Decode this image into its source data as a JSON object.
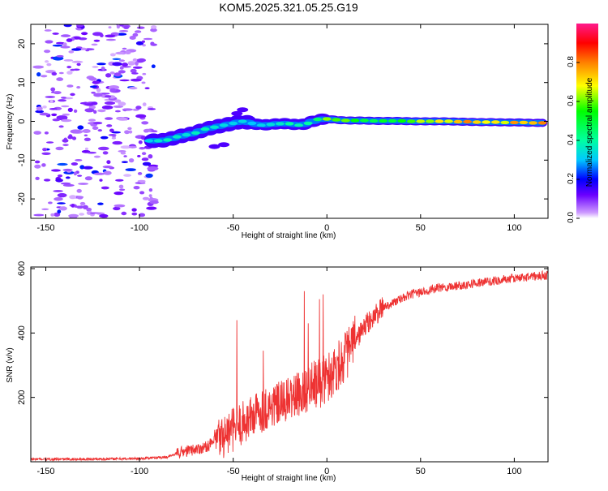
{
  "figure": {
    "title": "KOM5.2025.321.05.25.G19"
  },
  "chart_data": [
    {
      "type": "heatmap",
      "xlabel": "Height of straight line (km)",
      "ylabel": "Frequency (Hz)",
      "xlim": [
        -158,
        118
      ],
      "ylim": [
        -25,
        25
      ],
      "xticks": [
        -150,
        -100,
        -50,
        0,
        50,
        100
      ],
      "yticks": [
        -20,
        -10,
        0,
        10,
        20
      ],
      "colorbar": {
        "label": "Normalized spectral amplitude",
        "range": [
          0,
          1
        ],
        "ticks": [
          0.0,
          0.2,
          0.4,
          0.6,
          0.8
        ],
        "tick_labels": [
          "0.0",
          "0.2",
          "0.4",
          "0.6",
          "0.8"
        ]
      },
      "signal_track": [
        {
          "x": -95,
          "y": -5.0,
          "amp": 0.32
        },
        {
          "x": -90,
          "y": -5.0,
          "amp": 0.35
        },
        {
          "x": -85,
          "y": -4.8,
          "amp": 0.38
        },
        {
          "x": -80,
          "y": -4.0,
          "amp": 0.36
        },
        {
          "x": -75,
          "y": -3.5,
          "amp": 0.34
        },
        {
          "x": -70,
          "y": -3.0,
          "amp": 0.37
        },
        {
          "x": -65,
          "y": -2.0,
          "amp": 0.38
        },
        {
          "x": -60,
          "y": -1.5,
          "amp": 0.35
        },
        {
          "x": -55,
          "y": -1.0,
          "amp": 0.33
        },
        {
          "x": -50,
          "y": -0.5,
          "amp": 0.32
        },
        {
          "x": -45,
          "y": 0.0,
          "amp": 0.33
        },
        {
          "x": -40,
          "y": -0.5,
          "amp": 0.3
        },
        {
          "x": -35,
          "y": -1.0,
          "amp": 0.32
        },
        {
          "x": -30,
          "y": -0.8,
          "amp": 0.34
        },
        {
          "x": -25,
          "y": -0.6,
          "amp": 0.36
        },
        {
          "x": -20,
          "y": -0.6,
          "amp": 0.4
        },
        {
          "x": -15,
          "y": -1.0,
          "amp": 0.38
        },
        {
          "x": -10,
          "y": -0.5,
          "amp": 0.4
        },
        {
          "x": -5,
          "y": 0.5,
          "amp": 0.45
        },
        {
          "x": 0,
          "y": 0.6,
          "amp": 0.62
        },
        {
          "x": 5,
          "y": 0.4,
          "amp": 0.58
        },
        {
          "x": 10,
          "y": 0.2,
          "amp": 0.6
        },
        {
          "x": 15,
          "y": 0.2,
          "amp": 0.55
        },
        {
          "x": 20,
          "y": 0.2,
          "amp": 0.5
        },
        {
          "x": 25,
          "y": 0.1,
          "amp": 0.48
        },
        {
          "x": 30,
          "y": 0.1,
          "amp": 0.52
        },
        {
          "x": 35,
          "y": 0.1,
          "amp": 0.5
        },
        {
          "x": 40,
          "y": 0.1,
          "amp": 0.55
        },
        {
          "x": 45,
          "y": 0.0,
          "amp": 0.58
        },
        {
          "x": 50,
          "y": 0.0,
          "amp": 0.65
        },
        {
          "x": 55,
          "y": 0.0,
          "amp": 0.62
        },
        {
          "x": 60,
          "y": 0.0,
          "amp": 0.7
        },
        {
          "x": 65,
          "y": 0.0,
          "amp": 0.66
        },
        {
          "x": 70,
          "y": -0.1,
          "amp": 0.74
        },
        {
          "x": 75,
          "y": -0.1,
          "amp": 0.8
        },
        {
          "x": 80,
          "y": -0.2,
          "amp": 0.72
        },
        {
          "x": 85,
          "y": -0.2,
          "amp": 0.68
        },
        {
          "x": 90,
          "y": -0.2,
          "amp": 0.7
        },
        {
          "x": 95,
          "y": -0.3,
          "amp": 0.66
        },
        {
          "x": 100,
          "y": -0.3,
          "amp": 0.78
        },
        {
          "x": 105,
          "y": -0.3,
          "amp": 0.72
        },
        {
          "x": 110,
          "y": -0.4,
          "amp": 0.74
        },
        {
          "x": 115,
          "y": -0.4,
          "amp": 0.8
        }
      ],
      "noise_region": {
        "xmin": -155,
        "xmax": -92,
        "ymin": -25,
        "ymax": 25,
        "amp_range": [
          0.02,
          0.12
        ]
      }
    },
    {
      "type": "line",
      "xlabel": "Height of straight line (km)",
      "ylabel": "SNR (v/v)",
      "xlim": [
        -158,
        118
      ],
      "ylim": [
        0,
        605
      ],
      "xticks": [
        -150,
        -100,
        -50,
        0,
        50,
        100
      ],
      "yticks": [
        200,
        400,
        600
      ],
      "series": [
        {
          "name": "SNR",
          "color": "#ee3333",
          "profile": [
            {
              "x": -158,
              "y": 8
            },
            {
              "x": -130,
              "y": 8
            },
            {
              "x": -100,
              "y": 10
            },
            {
              "x": -85,
              "y": 15
            },
            {
              "x": -78,
              "y": 30
            },
            {
              "x": -65,
              "y": 45
            },
            {
              "x": -55,
              "y": 80
            },
            {
              "x": -45,
              "y": 120
            },
            {
              "x": -35,
              "y": 160
            },
            {
              "x": -25,
              "y": 180
            },
            {
              "x": -15,
              "y": 210
            },
            {
              "x": -5,
              "y": 240
            },
            {
              "x": 0,
              "y": 260
            },
            {
              "x": 10,
              "y": 330
            },
            {
              "x": 20,
              "y": 420
            },
            {
              "x": 30,
              "y": 480
            },
            {
              "x": 45,
              "y": 520
            },
            {
              "x": 60,
              "y": 540
            },
            {
              "x": 80,
              "y": 555
            },
            {
              "x": 100,
              "y": 570
            },
            {
              "x": 118,
              "y": 580
            }
          ],
          "spikes": [
            {
              "x": -48,
              "y": 440
            },
            {
              "x": -34,
              "y": 345
            },
            {
              "x": -12,
              "y": 530
            },
            {
              "x": -10,
              "y": 430
            },
            {
              "x": -4,
              "y": 505
            },
            {
              "x": -2,
              "y": 520
            }
          ]
        }
      ]
    }
  ]
}
